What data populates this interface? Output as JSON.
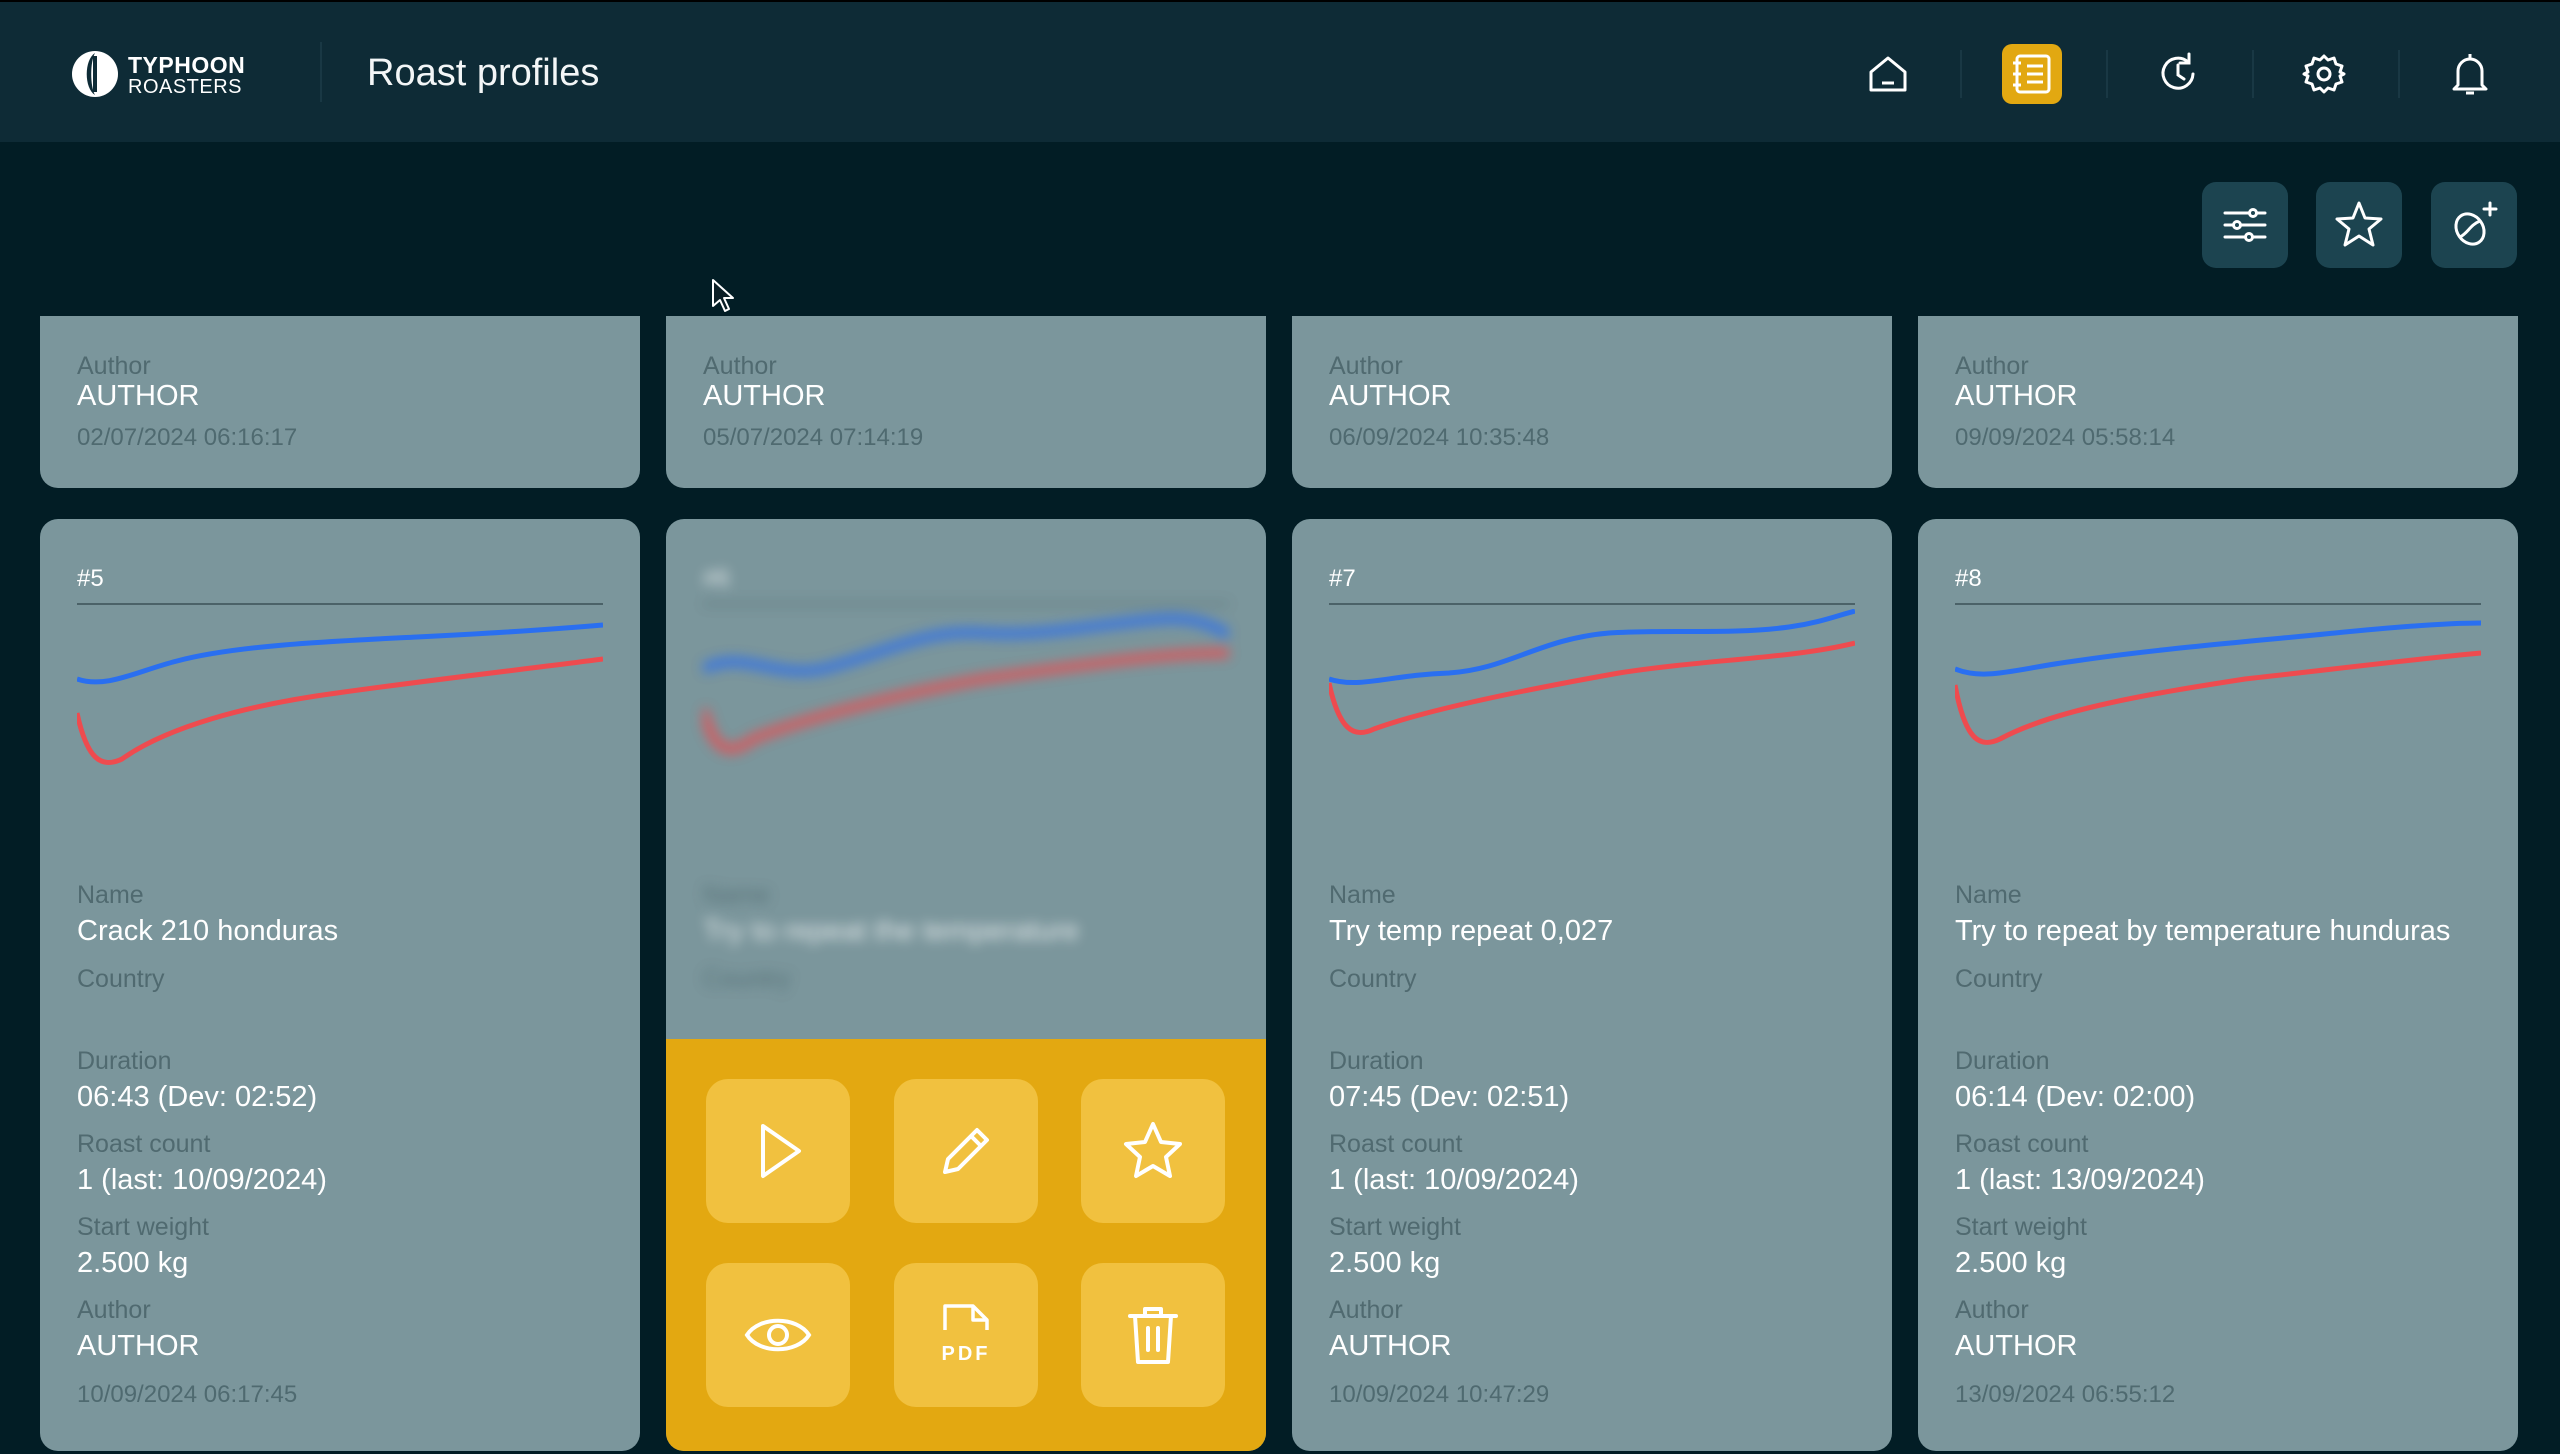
{
  "brand": {
    "line1": "TYPHOON",
    "line2": "ROASTERS"
  },
  "page_title": "Roast profiles",
  "nav": [
    {
      "icon": "home-icon",
      "active": false
    },
    {
      "icon": "recipe-book-icon",
      "active": true
    },
    {
      "icon": "history-icon",
      "active": false
    },
    {
      "icon": "settings-icon",
      "active": false
    },
    {
      "icon": "bell-icon",
      "active": false
    }
  ],
  "toolbar": [
    "filter-icon",
    "favorite-icon",
    "add-bean-icon"
  ],
  "labels": {
    "author": "Author",
    "name": "Name",
    "country": "Country",
    "duration": "Duration",
    "roast_count": "Roast count",
    "start_weight": "Start weight"
  },
  "top_row": [
    {
      "author": "AUTHOR",
      "date": "02/07/2024 06:16:17"
    },
    {
      "author": "AUTHOR",
      "date": "05/07/2024 07:14:19"
    },
    {
      "author": "AUTHOR",
      "date": "06/09/2024 10:35:48"
    },
    {
      "author": "AUTHOR",
      "date": "09/09/2024 05:58:14"
    }
  ],
  "cards": [
    {
      "num": "#5",
      "name": "Crack 210 honduras",
      "duration": "06:43 (Dev: 02:52)",
      "roast_count": "1 (last: 10/09/2024)",
      "start_weight": "2.500 kg",
      "author": "AUTHOR",
      "date": "10/09/2024 06:17:45"
    },
    {
      "num": "#6",
      "name": "Try to repeat the temperature"
    },
    {
      "num": "#7",
      "name": "Try temp repeat 0,027",
      "duration": "07:45 (Dev: 02:51)",
      "roast_count": "1 (last: 10/09/2024)",
      "start_weight": "2.500 kg",
      "author": "AUTHOR",
      "date": "10/09/2024 10:47:29"
    },
    {
      "num": "#8",
      "name": "Try to repeat by temperature hunduras",
      "duration": "06:14 (Dev: 02:00)",
      "roast_count": "1 (last: 13/09/2024)",
      "start_weight": "2.500 kg",
      "author": "AUTHOR",
      "date": "13/09/2024 06:55:12"
    }
  ],
  "actions": {
    "pdf_label": "PDF"
  },
  "colors": {
    "bean_temp": "#2a6ff0",
    "env_temp": "#ee4b4f",
    "accent": "#e3a811",
    "card": "#7b969c"
  }
}
